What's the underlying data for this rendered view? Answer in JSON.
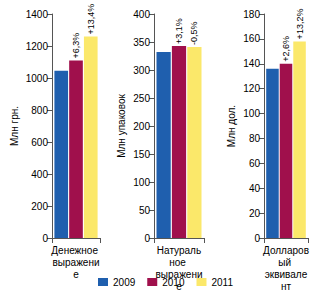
{
  "chart_data": [
    {
      "type": "bar",
      "ylabel": "Млн грн.",
      "categories": [
        "Денежное выражение"
      ],
      "series": [
        {
          "name": "2009",
          "color": "#1f5fae",
          "values": [
            1045
          ]
        },
        {
          "name": "2010",
          "color": "#a0104c",
          "values": [
            1110
          ]
        },
        {
          "name": "2011",
          "color": "#fbe86a",
          "values": [
            1260
          ]
        }
      ],
      "annotations": [
        {
          "series": "2010",
          "text": "+6,3%"
        },
        {
          "series": "2011",
          "text": "+13,4%"
        }
      ],
      "ylim": [
        0,
        1400
      ],
      "yticks": [
        0,
        200,
        400,
        600,
        800,
        1000,
        1200,
        1400
      ],
      "grid": false,
      "legend": "bottom"
    },
    {
      "type": "bar",
      "ylabel": "Млн упаковок",
      "categories": [
        "Натуральное выражение"
      ],
      "series": [
        {
          "name": "2009",
          "color": "#1f5fae",
          "values": [
            332
          ]
        },
        {
          "name": "2010",
          "color": "#a0104c",
          "values": [
            343
          ]
        },
        {
          "name": "2011",
          "color": "#fbe86a",
          "values": [
            341
          ]
        }
      ],
      "annotations": [
        {
          "series": "2010",
          "text": "+3,1%"
        },
        {
          "series": "2011",
          "text": "-0,5%"
        }
      ],
      "ylim": [
        0,
        400
      ],
      "yticks": [
        0,
        50,
        100,
        150,
        200,
        250,
        300,
        350,
        400
      ],
      "grid": false
    },
    {
      "type": "bar",
      "ylabel": "Млн дол.",
      "categories": [
        "Долларовый эквивалент"
      ],
      "series": [
        {
          "name": "2009",
          "color": "#1f5fae",
          "values": [
            136
          ]
        },
        {
          "name": "2010",
          "color": "#a0104c",
          "values": [
            140
          ]
        },
        {
          "name": "2011",
          "color": "#fbe86a",
          "values": [
            158
          ]
        }
      ],
      "annotations": [
        {
          "series": "2010",
          "text": "+2,6%"
        },
        {
          "series": "2011",
          "text": "+13,2%"
        }
      ],
      "ylim": [
        0,
        180
      ],
      "yticks": [
        0,
        20,
        40,
        60,
        80,
        100,
        120,
        140,
        160,
        180
      ],
      "grid": false
    }
  ]
}
